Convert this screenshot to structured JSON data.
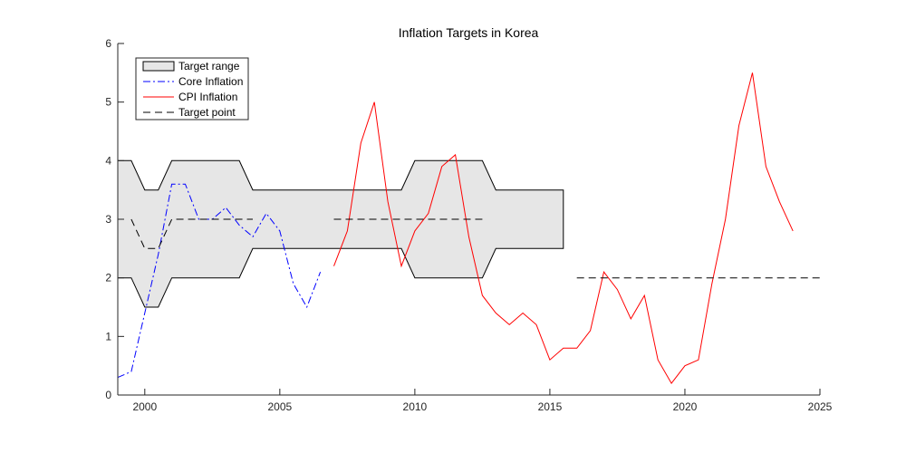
{
  "chart_data": {
    "type": "line",
    "title": "Inflation Targets in Korea",
    "xlabel": "",
    "ylabel": "",
    "xlim": [
      1999,
      2025
    ],
    "ylim": [
      0,
      6
    ],
    "xticks": [
      2000,
      2005,
      2010,
      2015,
      2020,
      2025
    ],
    "yticks": [
      0,
      1,
      2,
      3,
      4,
      5,
      6
    ],
    "grid": false,
    "legend_position": "top-left",
    "target_range": {
      "name": "Target range",
      "color": "#e6e6e6",
      "edge_color": "#000000",
      "upper": [
        [
          1999,
          4
        ],
        [
          1999.5,
          4
        ],
        [
          2000,
          3.5
        ],
        [
          2000.5,
          3.5
        ],
        [
          2001,
          4
        ],
        [
          2003.5,
          4
        ],
        [
          2004,
          3.5
        ],
        [
          2009.5,
          3.5
        ],
        [
          2010,
          4
        ],
        [
          2012.5,
          4
        ],
        [
          2013,
          3.5
        ],
        [
          2015.5,
          3.5
        ]
      ],
      "lower": [
        [
          1999,
          2
        ],
        [
          1999.5,
          2
        ],
        [
          2000,
          1.5
        ],
        [
          2000.5,
          1.5
        ],
        [
          2001,
          2
        ],
        [
          2003.5,
          2
        ],
        [
          2004,
          2.5
        ],
        [
          2009.5,
          2.5
        ],
        [
          2010,
          2
        ],
        [
          2012.5,
          2
        ],
        [
          2013,
          2.5
        ],
        [
          2015.5,
          2.5
        ]
      ]
    },
    "series": [
      {
        "name": "Core Inflation",
        "color": "#0000ff",
        "style": "dash-dot",
        "x": [
          1999,
          1999.5,
          2000,
          2000.5,
          2001,
          2001.5,
          2002,
          2002.5,
          2003,
          2003.5,
          2004,
          2004.5,
          2005,
          2005.5,
          2006,
          2006.5
        ],
        "y": [
          0.3,
          0.4,
          1.4,
          2.4,
          3.6,
          3.6,
          3.0,
          3.0,
          3.2,
          2.9,
          2.7,
          3.1,
          2.8,
          1.9,
          1.5,
          2.1
        ]
      },
      {
        "name": "CPI Inflation",
        "color": "#ff0000",
        "style": "solid",
        "x": [
          2007,
          2007.5,
          2008,
          2008.5,
          2009,
          2009.5,
          2010,
          2010.5,
          2011,
          2011.5,
          2012,
          2012.5,
          2013,
          2013.5,
          2014,
          2014.5,
          2015,
          2015.5,
          2016,
          2016.5,
          2017,
          2017.5,
          2018,
          2018.5,
          2019,
          2019.5,
          2020,
          2020.5,
          2021,
          2021.5,
          2022,
          2022.5,
          2023,
          2023.5,
          2024
        ],
        "y": [
          2.2,
          2.8,
          4.3,
          5.0,
          3.3,
          2.2,
          2.8,
          3.1,
          3.9,
          4.1,
          2.7,
          1.7,
          1.4,
          1.2,
          1.4,
          1.2,
          0.6,
          0.8,
          0.8,
          1.1,
          2.1,
          1.8,
          1.3,
          1.7,
          0.6,
          0.2,
          0.5,
          0.6,
          1.9,
          3.0,
          4.6,
          5.5,
          3.9,
          3.3,
          2.8
        ]
      },
      {
        "name": "Target point",
        "color": "#000000",
        "style": "dashed",
        "segments": [
          [
            [
              1999.5,
              3
            ],
            [
              2000,
              2.5
            ],
            [
              2000.5,
              2.5
            ],
            [
              2001,
              3
            ],
            [
              2003.5,
              3
            ],
            [
              2004,
              3
            ]
          ],
          [
            [
              2007,
              3
            ],
            [
              2012.5,
              3
            ]
          ],
          [
            [
              2016,
              2
            ],
            [
              2025,
              2
            ]
          ]
        ]
      }
    ],
    "legend": [
      "Target range",
      "Core Inflation",
      "CPI Inflation",
      "Target point"
    ]
  }
}
